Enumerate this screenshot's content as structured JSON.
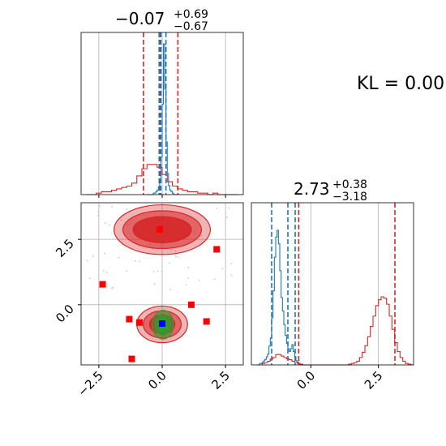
{
  "chart_data": [
    {
      "type": "histogram",
      "panel": "marginal-x",
      "title_value": "−0.07",
      "title_sup": "+0.69",
      "title_sub": "−0.67",
      "xlim": [
        -3.2,
        3.2
      ],
      "grid": true,
      "series": [
        {
          "color": "#1f77b4",
          "bin_start": -0.6,
          "bin_width": 0.05,
          "counts": [
            0,
            0,
            0,
            0,
            0,
            1,
            1,
            2,
            3,
            5,
            10,
            25,
            60,
            100,
            70,
            35,
            14,
            6,
            3,
            2,
            1,
            0,
            0,
            0,
            0
          ],
          "quantile_lines": [
            -0.12,
            -0.05,
            0.15
          ]
        },
        {
          "color": "#d62728",
          "bin_start": -3.0,
          "bin_width": 0.2,
          "counts": [
            0,
            0,
            1,
            2,
            2,
            3,
            4,
            5,
            6,
            8,
            13,
            18,
            21,
            21,
            19,
            14,
            9,
            6,
            4,
            3,
            2,
            2,
            1,
            1,
            0,
            1,
            0,
            0,
            0,
            0
          ],
          "quantile_lines": [
            -0.74,
            -0.07,
            0.62
          ]
        }
      ]
    },
    {
      "type": "histogram",
      "panel": "marginal-y",
      "title_value": "2.73",
      "title_sup": "+0.38",
      "title_sub": "−3.18",
      "xlim": [
        -2.2,
        3.8
      ],
      "xticks": [
        "0.0",
        "2.5"
      ],
      "grid": true,
      "series": [
        {
          "color": "#1f77b4",
          "bin_start": -2.0,
          "bin_width": 0.05,
          "counts": [
            0,
            0,
            1,
            1,
            2,
            3,
            4,
            6,
            8,
            14,
            20,
            35,
            55,
            80,
            95,
            100,
            90,
            70,
            50,
            40,
            30,
            22,
            16,
            12,
            10,
            12,
            15,
            10,
            6,
            3,
            2,
            1,
            0,
            0
          ],
          "quantile_lines": [
            -1.45,
            -0.85,
            -0.58
          ]
        },
        {
          "color": "#d62728",
          "bin_start": -1.8,
          "bin_width": 0.1,
          "counts": [
            2,
            3,
            5,
            8,
            10,
            14,
            14,
            12,
            10,
            8,
            7,
            5,
            3,
            2,
            1,
            0,
            0,
            0,
            0,
            0,
            0,
            0,
            0,
            0,
            0,
            0,
            0,
            0,
            0,
            0,
            0,
            0,
            1,
            2,
            3,
            5,
            10,
            17,
            26,
            38,
            52,
            66,
            80,
            88,
            92,
            90,
            82,
            66,
            48,
            30,
            18,
            10,
            5,
            2,
            1,
            0
          ],
          "quantile_lines": [
            -0.45,
            3.11
          ]
        }
      ]
    },
    {
      "type": "scatter",
      "panel": "joint",
      "xlim": [
        -3.2,
        3.2
      ],
      "ylim": [
        -2.3,
        3.9
      ],
      "xticks": [
        "−2.5",
        "0.0",
        "2.5"
      ],
      "yticks": [
        "0.0",
        "2.5"
      ],
      "grid": true,
      "points": [
        {
          "x": -2.35,
          "y": 0.78
        },
        {
          "x": -1.3,
          "y": -0.55
        },
        {
          "x": -0.9,
          "y": -0.68
        },
        {
          "x": -1.2,
          "y": -2.07
        },
        {
          "x": -0.1,
          "y": 2.88
        },
        {
          "x": 1.15,
          "y": 0.0
        },
        {
          "x": 1.75,
          "y": -0.64
        },
        {
          "x": 2.15,
          "y": 2.12
        },
        {
          "x": 0.0,
          "y": -0.72
        }
      ],
      "point_colors": [
        "#ff0000",
        "#ff0000",
        "#ff0000",
        "#ff0000",
        "#ff0000",
        "#ff0000",
        "#ff0000",
        "#ff0000",
        "#0000ff"
      ],
      "contours": [
        {
          "color": "#d62728",
          "cx": 0.0,
          "cy": 2.87,
          "levels": [
            [
              1.9,
              0.95
            ],
            [
              1.55,
              0.72
            ],
            [
              1.15,
              0.5
            ]
          ]
        },
        {
          "color": "#d62728",
          "cx": 0.0,
          "cy": -0.75,
          "levels": [
            [
              1.0,
              0.7
            ],
            [
              0.75,
              0.52
            ],
            [
              0.5,
              0.36
            ]
          ]
        },
        {
          "color": "#2ca02c",
          "cx": 0.03,
          "cy": -0.76,
          "levels": [
            [
              0.42,
              0.55
            ],
            [
              0.3,
              0.4
            ],
            [
              0.18,
              0.27
            ]
          ]
        }
      ]
    }
  ],
  "annotation": {
    "kl_text": "KL = 0.00"
  },
  "colors": {
    "blue": "#1f77b4",
    "red": "#d62728",
    "green": "#2ca02c",
    "grid": "#b0b0b0"
  }
}
